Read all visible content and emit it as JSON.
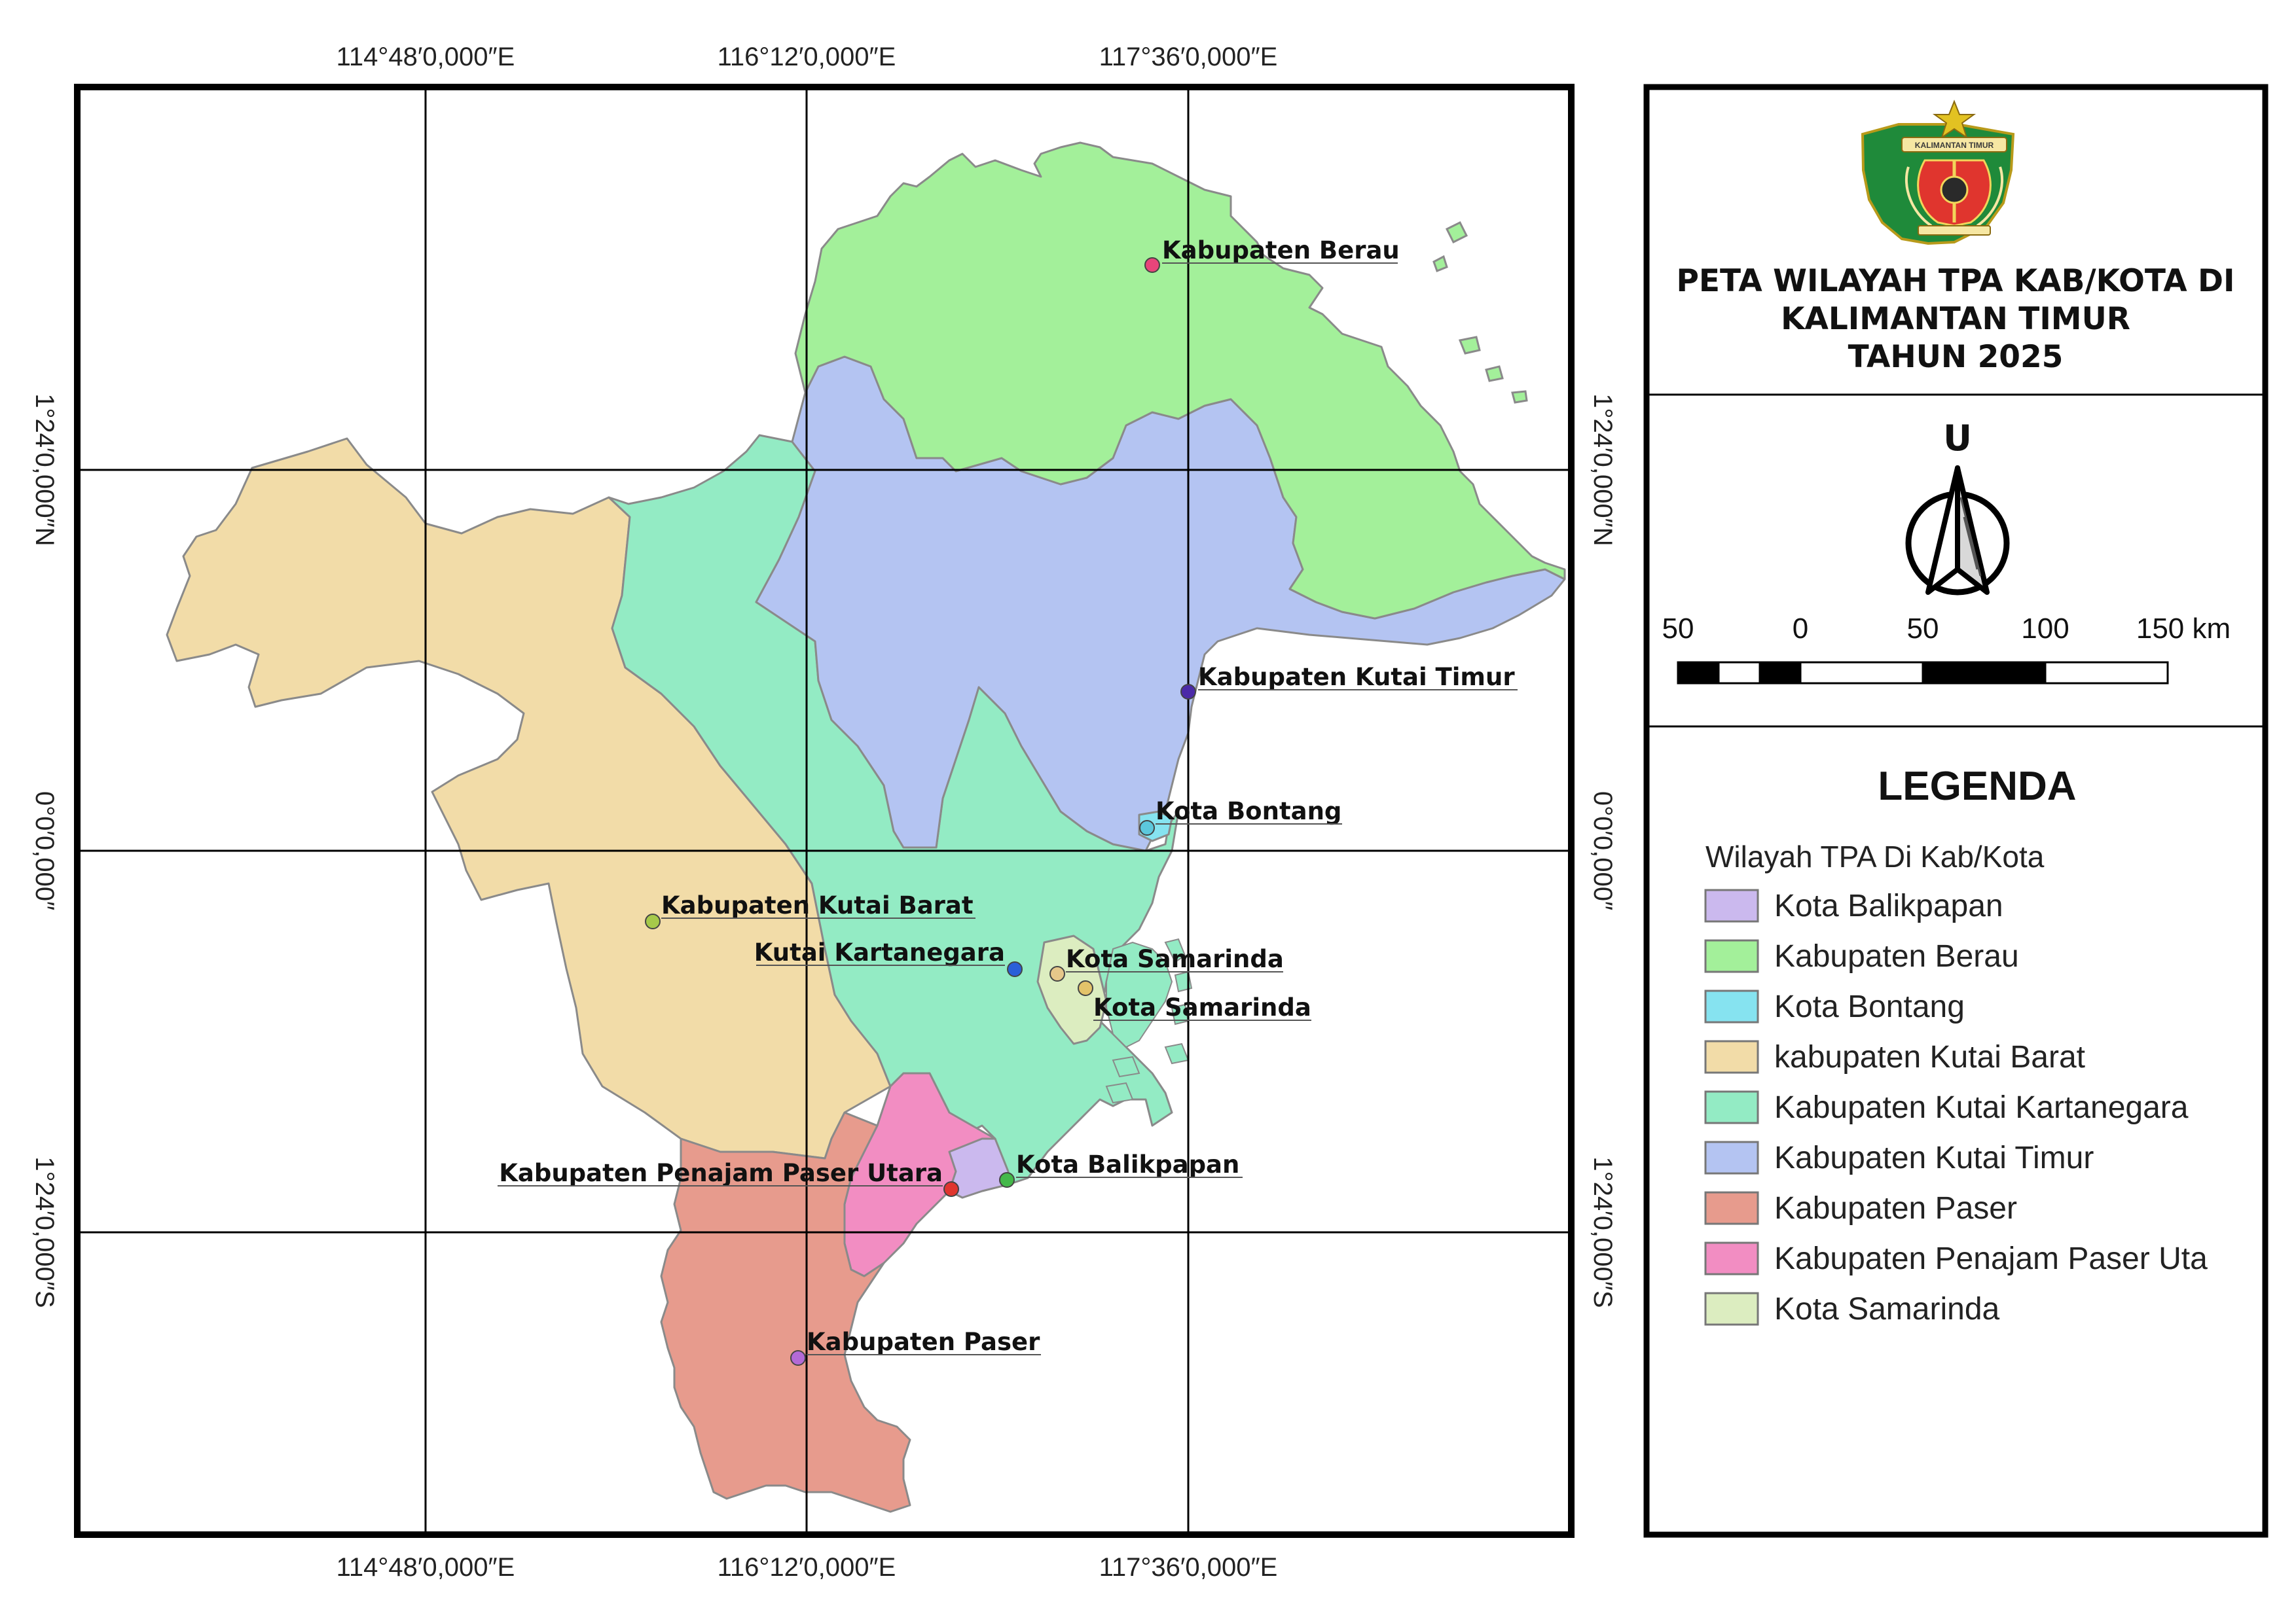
{
  "map": {
    "top_coords": [
      "114°48′0,000″E",
      "116°12′0,000″E",
      "117°36′0,000″E"
    ],
    "bottom_coords": [
      "114°48′0,000″E",
      "116°12′0,000″E",
      "117°36′0,000″E"
    ],
    "left_coords": [
      "1°24′0,000″N",
      "0°0′0,000″",
      "1°24′0,000″S"
    ],
    "right_coords": [
      "1°24′0,000″N",
      "0°0′0,000″",
      "1°24′0,000″S"
    ],
    "places": [
      {
        "label": "Kabupaten Berau",
        "dot_color": "#e8457a"
      },
      {
        "label": "Kabupaten Kutai Timur",
        "dot_color": "#4b2aa8"
      },
      {
        "label": "Kota Bontang",
        "dot_color": "#5cc8dc"
      },
      {
        "label": "Kabupaten Kutai Barat",
        "dot_color": "#a6c94a"
      },
      {
        "label": "Kutai Kartanegara",
        "dot_color": "#2a5fd8"
      },
      {
        "label": "Kota Samarinda",
        "dot_color": "#e6c78a"
      },
      {
        "label": "Kota Samarinda",
        "dot_color": "#e3c36a"
      },
      {
        "label": "Kabupaten Penajam Paser Utara",
        "dot_color": "#e0352e"
      },
      {
        "label": "Kota Balikpapan",
        "dot_color": "#44b84a"
      },
      {
        "label": "Kabupaten Paser",
        "dot_color": "#b36ad6"
      }
    ]
  },
  "panel": {
    "emblem_text": "KALIMANTAN TIMUR",
    "title_lines": [
      "PETA WILAYAH TPA KAB/KOTA DI",
      "KALIMANTAN TIMUR",
      "TAHUN 2025"
    ],
    "north_letter": "U",
    "scale_labels": [
      "50",
      "0",
      "50",
      "100",
      "150 km"
    ],
    "legend_title": "LEGENDA",
    "legend_subtitle": "Wilayah TPA Di Kab/Kota",
    "legend_items": [
      {
        "label": "Kota Balikpapan",
        "color": "#cbb9ee"
      },
      {
        "label": "Kabupaten Berau",
        "color": "#a3f09a"
      },
      {
        "label": "Kota Bontang",
        "color": "#86e3f0"
      },
      {
        "label": "kabupaten Kutai Barat",
        "color": "#f2dca8"
      },
      {
        "label": "Kabupaten Kutai Kartanegara",
        "color": "#93ebc4"
      },
      {
        "label": "Kabupaten Kutai Timur",
        "color": "#b4c4f2"
      },
      {
        "label": "Kabupaten Paser",
        "color": "#e79b8d"
      },
      {
        "label": "Kabupaten Penajam Paser Uta",
        "color": "#f28dc2"
      },
      {
        "label": "Kota Samarinda",
        "color": "#dcedc0"
      }
    ]
  }
}
